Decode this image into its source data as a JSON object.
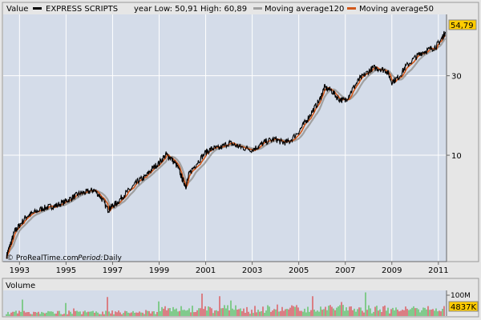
{
  "chart_data": [
    {
      "type": "line",
      "title": "EXPRESS SCRIPTS",
      "header_label": "Value",
      "year_range_text": "year Low: 50,91 High: 60,89",
      "last_value_text": "54,79",
      "source_text": "© ProRealTime.com",
      "period_label": "Period:",
      "period_value": "Daily",
      "y_scale": "log",
      "ylim": [
        2.3,
        70
      ],
      "xlim": [
        1992.3,
        2011.35
      ],
      "y_ticks": [
        {
          "value": 10,
          "label": "10"
        },
        {
          "value": 30,
          "label": "30"
        }
      ],
      "x_ticks": [
        "1993",
        "1995",
        "1997",
        "1999",
        "2001",
        "2003",
        "2005",
        "2007",
        "2009",
        "2011"
      ],
      "grid": true,
      "legend_position": "top",
      "series": [
        {
          "name": "EXPRESS SCRIPTS",
          "color": "#000000",
          "x": [
            1992.45,
            1992.6,
            1992.8,
            1993.0,
            1993.3,
            1993.6,
            1994.0,
            1994.3,
            1994.6,
            1995.0,
            1995.3,
            1995.6,
            1995.9,
            1996.2,
            1996.5,
            1996.8,
            1996.95,
            1997.2,
            1997.5,
            1997.8,
            1998.1,
            1998.4,
            1998.7,
            1999.0,
            1999.3,
            1999.5,
            1999.8,
            2000.0,
            2000.15,
            2000.3,
            2000.6,
            2001.0,
            2001.3,
            2001.6,
            2002.0,
            2002.3,
            2002.6,
            2003.0,
            2003.3,
            2003.6,
            2004.0,
            2004.3,
            2004.6,
            2005.0,
            2005.3,
            2005.6,
            2005.9,
            2006.1,
            2006.4,
            2006.7,
            2007.0,
            2007.3,
            2007.6,
            2007.9,
            2008.2,
            2008.5,
            2008.8,
            2009.0,
            2009.3,
            2009.6,
            2010.0,
            2010.3,
            2010.6,
            2010.9,
            2011.1,
            2011.3
          ],
          "y": [
            2.5,
            2.9,
            3.5,
            3.8,
            4.3,
            4.5,
            4.8,
            4.9,
            5.0,
            5.3,
            5.6,
            5.9,
            6.0,
            6.2,
            5.6,
            4.7,
            4.9,
            5.2,
            5.8,
            6.3,
            7.0,
            7.4,
            8.3,
            9.0,
            10.1,
            9.6,
            8.5,
            7.2,
            6.5,
            7.8,
            8.9,
            10.4,
            11.0,
            11.0,
            11.9,
            11.4,
            11.1,
            10.8,
            11.4,
            12.1,
            12.5,
            11.9,
            12.1,
            13.9,
            15.9,
            18.5,
            21.5,
            25.5,
            24.5,
            21.8,
            21.2,
            24.8,
            28.5,
            31.0,
            33.5,
            33.0,
            32.0,
            27.5,
            29.5,
            34.0,
            38.5,
            41.5,
            43.0,
            45.0,
            49.0,
            55.0
          ]
        },
        {
          "name": "Moving average120",
          "color": "#a0a0a0"
        },
        {
          "name": "Moving average50",
          "color": "#d2581a"
        }
      ]
    },
    {
      "type": "bar",
      "title": "Volume",
      "y_ticks": [
        {
          "value": 100,
          "label": "100M"
        }
      ],
      "last_value_text": "4837K",
      "colors": {
        "up": "#2eb82e",
        "down": "#e02020"
      }
    }
  ]
}
